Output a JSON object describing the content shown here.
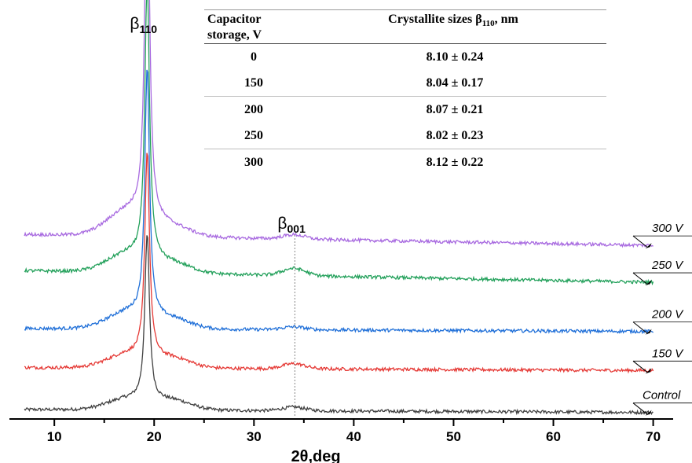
{
  "chart_data": {
    "type": "line",
    "xlabel": "2θ,deg",
    "xlim": [
      5.5,
      72
    ],
    "x_ticks": [
      10,
      20,
      30,
      40,
      50,
      60,
      70
    ],
    "x_tick_labels": [
      "10",
      "20",
      "30",
      "40",
      "50",
      "60",
      "70"
    ],
    "y_axis_shown": false,
    "grid": false,
    "peak_annotations": [
      {
        "symbol": "β",
        "subscript": "110",
        "x": 19.3
      },
      {
        "symbol": "β",
        "subscript": "001",
        "x": 34.1,
        "dashed_line": true
      }
    ],
    "series": [
      {
        "name": "Control",
        "color": "#404040",
        "baseline": 0.0,
        "peak_height": 2.3,
        "end_offset": -0.04,
        "hump_height": 0.05
      },
      {
        "name": "150 V",
        "color": "#e53935",
        "baseline": 0.58,
        "peak_height": 2.85,
        "end_offset": -0.04,
        "hump_height": 0.07
      },
      {
        "name": "200 V",
        "color": "#1f6fd8",
        "baseline": 1.12,
        "peak_height": 3.45,
        "end_offset": -0.04,
        "hump_height": 0.04
      },
      {
        "name": "250 V",
        "color": "#22a05a",
        "baseline": 1.92,
        "peak_height": 3.85,
        "end_offset": -0.16,
        "hump_height": 0.1
      },
      {
        "name": "300 V",
        "color": "#a86ae0",
        "baseline": 2.42,
        "peak_height": 5.2,
        "end_offset": -0.15,
        "hump_height": 0.06
      }
    ]
  },
  "table": {
    "header_col1": "Capacitor storage, V",
    "header_col2_prefix": "Crystallite sizes β",
    "header_col2_sub": "110",
    "header_col2_suffix": ", nm",
    "rows": [
      {
        "voltage": "0",
        "size": "8.10 ± 0.24"
      },
      {
        "voltage": "150",
        "size": "8.04 ± 0.17"
      },
      {
        "voltage": "200",
        "size": "8.07 ± 0.21"
      },
      {
        "voltage": "250",
        "size": "8.02 ± 0.23"
      },
      {
        "voltage": "300",
        "size": "8.12 ± 0.22"
      }
    ]
  }
}
